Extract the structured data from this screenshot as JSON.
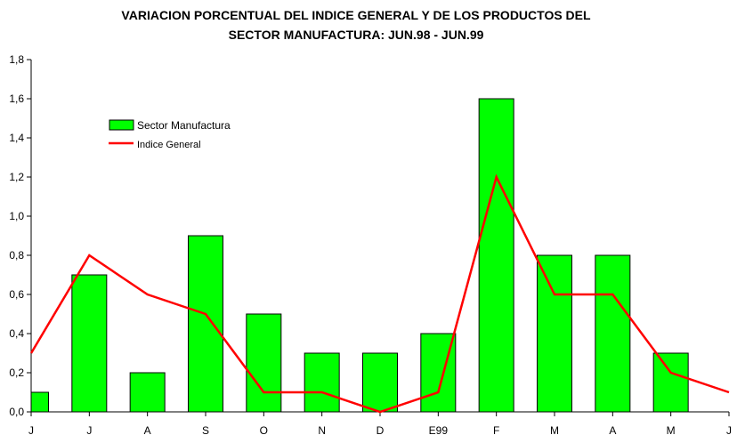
{
  "chart_data": {
    "type": "bar",
    "title_line1": "VARIACION PORCENTUAL DEL INDICE GENERAL Y DE LOS PRODUCTOS DEL",
    "title_line2": "SECTOR MANUFACTURA: JUN.98 - JUN.99",
    "categories": [
      "J",
      "J",
      "A",
      "S",
      "O",
      "N",
      "D",
      "E99",
      "F",
      "M",
      "A",
      "M",
      "J"
    ],
    "series": [
      {
        "name": "Sector Manufactura",
        "kind": "bar",
        "color": "#00ff00",
        "values": [
          0.1,
          0.7,
          0.2,
          0.9,
          0.5,
          0.3,
          0.3,
          0.4,
          1.6,
          0.8,
          0.8,
          0.3,
          null
        ]
      },
      {
        "name": "Indice General",
        "kind": "line",
        "color": "#ff0000",
        "values": [
          0.3,
          0.8,
          0.6,
          0.5,
          0.1,
          0.1,
          0.0,
          0.1,
          1.2,
          0.6,
          0.6,
          0.2,
          0.1
        ]
      }
    ],
    "yticks": [
      "0,0",
      "0,2",
      "0,4",
      "0,6",
      "0,8",
      "1,0",
      "1,2",
      "1,4",
      "1,6",
      "1,8"
    ],
    "ylim": [
      0,
      1.8
    ],
    "legend_position": "upper-left",
    "grid": false
  }
}
